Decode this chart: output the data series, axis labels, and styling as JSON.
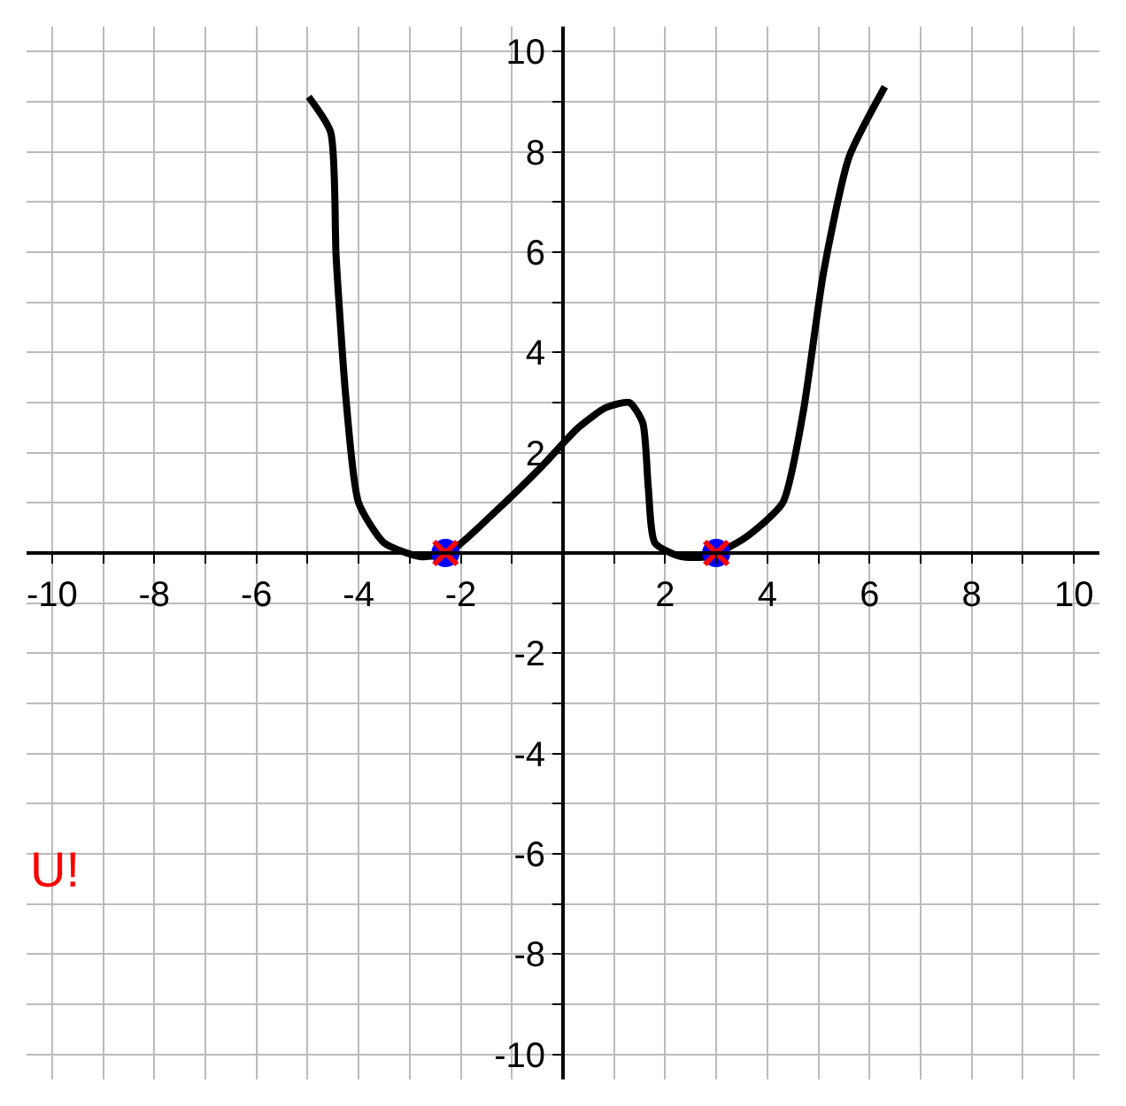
{
  "chart_data": {
    "type": "line",
    "xlim": [
      -10.5,
      10.5
    ],
    "ylim": [
      -10.5,
      10.5
    ],
    "xticks": [
      -10,
      {
        "value": -9,
        "label": null
      },
      -8,
      {
        "value": -7,
        "label": null
      },
      -6,
      {
        "value": -5,
        "label": null
      },
      -4,
      {
        "value": -3,
        "label": null
      },
      -2,
      {
        "value": -1,
        "label": null
      },
      {
        "value": 0,
        "label": null
      },
      {
        "value": 1,
        "label": null
      },
      2,
      {
        "value": 3,
        "label": null
      },
      4,
      {
        "value": 5,
        "label": null
      },
      6,
      {
        "value": 7,
        "label": null
      },
      8,
      {
        "value": 9,
        "label": null
      },
      10
    ],
    "yticks": [
      -10,
      {
        "value": -9,
        "label": null
      },
      -8,
      {
        "value": -7,
        "label": null
      },
      -6,
      {
        "value": -5,
        "label": null
      },
      -4,
      {
        "value": -3,
        "label": null
      },
      -2,
      {
        "value": -1,
        "label": null
      },
      {
        "value": 0,
        "label": null
      },
      {
        "value": 1,
        "label": null
      },
      2,
      {
        "value": 3,
        "label": null
      },
      4,
      {
        "value": 5,
        "label": null
      },
      6,
      {
        "value": 7,
        "label": null
      },
      8,
      {
        "value": 9,
        "label": null
      },
      10
    ],
    "grid": true,
    "series": [
      {
        "color": "#000000",
        "marker": "none",
        "line_style": "solid",
        "x": [
          -4.98,
          -4.55,
          -4.44,
          -4.25,
          -4.0,
          -3.5,
          -2.8,
          -2.25,
          -1.35,
          -0.44,
          0.3,
          0.84,
          1.3,
          1.56,
          1.67,
          1.8,
          2.3,
          2.84,
          3.56,
          4.3,
          4.7,
          5.1,
          5.6,
          6.3
        ],
        "values": [
          9.1,
          8.4,
          5.9,
          3.1,
          1.0,
          0.2,
          -0.07,
          0.0,
          0.8,
          1.7,
          2.5,
          2.9,
          3.0,
          2.6,
          1.3,
          0.2,
          -0.07,
          -0.07,
          0.3,
          1.0,
          2.8,
          5.6,
          7.9,
          9.3
        ]
      },
      {
        "type": "scatter",
        "color": "#0000ff",
        "marker": "circle",
        "x": [
          -2.3,
          3.0
        ],
        "values": [
          0,
          0
        ]
      },
      {
        "type": "scatter",
        "color": "#ff0000",
        "marker": "cross",
        "x": [
          -2.3,
          3.0
        ],
        "values": [
          0,
          0
        ]
      }
    ],
    "annotations": [
      "U!"
    ]
  }
}
